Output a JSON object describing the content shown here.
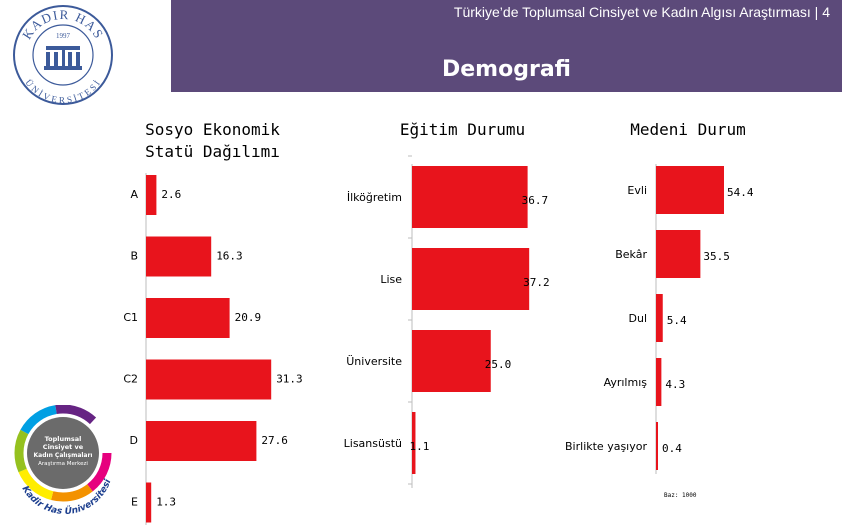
{
  "header": {
    "title": "Türkiye’de Toplumsal Cinsiyet ve Kadın Algısı Araştırması | 4",
    "subtitle": "Demografi"
  },
  "logo": {
    "top_text": "KADIR HAS",
    "year": "1997",
    "bottom_text": "ÜNİVERSİTESİ",
    "icon": "university-seal-icon"
  },
  "center_logo": {
    "lines": [
      "Toplumsal",
      "Cinsiyet ve",
      "Kadın Çalışmaları",
      "Araştırma Merkezi"
    ],
    "curve_text": "Kadir Has Üniversitesi",
    "icon": "rainbow-ring-logo-icon"
  },
  "colors": {
    "bar": "#e8141c",
    "header_bg": "#5c4a7a"
  },
  "chart_data": [
    {
      "type": "bar",
      "orientation": "horizontal",
      "title": "Sosyo Ekonomik Statü Dağılımı",
      "title_lines": [
        "Sosyo Ekonomik",
        "Statü Dağılımı"
      ],
      "categories": [
        "A",
        "B",
        "C1",
        "C2",
        "D",
        "E"
      ],
      "values": [
        2.6,
        16.3,
        20.9,
        31.3,
        27.6,
        1.3
      ],
      "value_labels": [
        "2.6",
        "16.3",
        "20.9",
        "31.3",
        "27.6",
        "1.3"
      ]
    },
    {
      "type": "bar",
      "orientation": "horizontal",
      "title": "Eğitim Durumu",
      "categories": [
        "İlköğretim",
        "Lise",
        "Üniversite",
        "Lisansüstü"
      ],
      "values": [
        36.7,
        37.2,
        25.0,
        1.1
      ],
      "value_labels": [
        "36.7",
        "37.2",
        "25.0",
        "1.1"
      ]
    },
    {
      "type": "bar",
      "orientation": "horizontal",
      "title": "Medeni Durum",
      "categories": [
        "Evli",
        "Bekâr",
        "Dul",
        "Ayrılmış",
        "Birlikte yaşıyor"
      ],
      "values": [
        54.4,
        35.5,
        5.4,
        4.3,
        0.4
      ],
      "value_labels": [
        "54.4",
        "35.5",
        "5.4",
        "4.3",
        "0.4"
      ]
    }
  ],
  "footnote": "Baz: 1000"
}
